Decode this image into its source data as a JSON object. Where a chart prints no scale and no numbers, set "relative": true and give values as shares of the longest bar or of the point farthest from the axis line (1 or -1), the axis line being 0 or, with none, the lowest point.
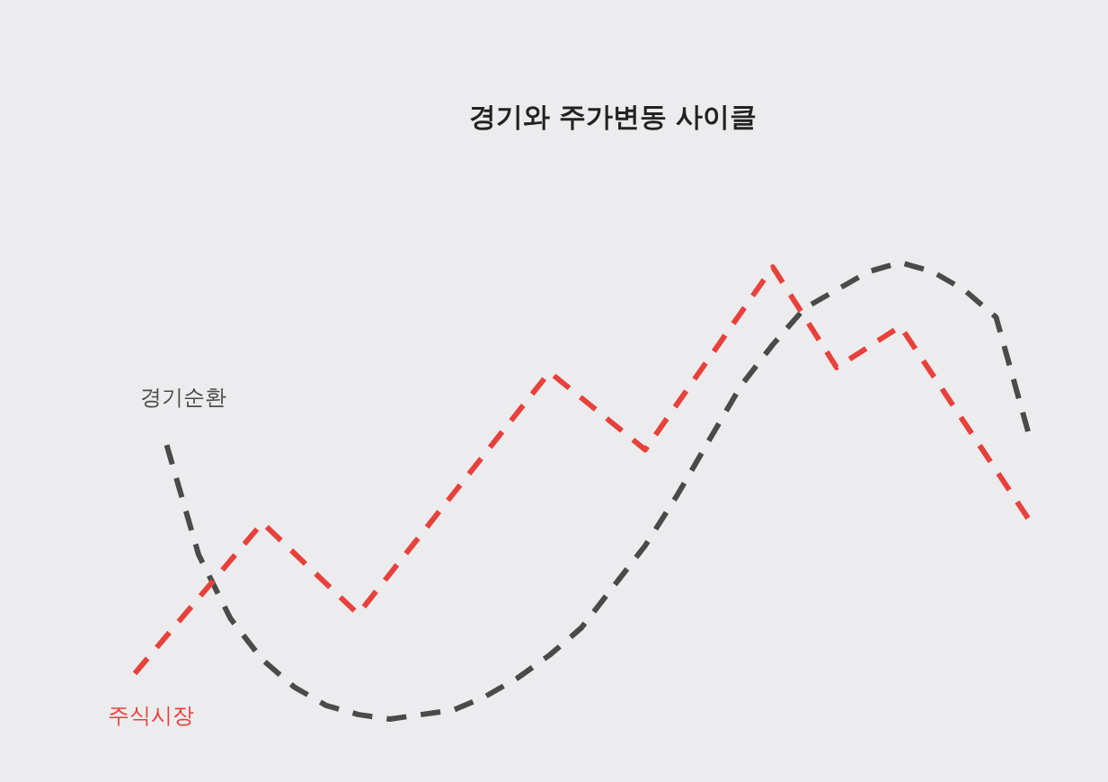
{
  "chart_data": {
    "type": "line",
    "title": "경기와 주가변동 사이클",
    "relative": true,
    "line_style": "dashed",
    "categories": [
      null,
      null,
      null,
      null,
      null,
      null,
      null,
      null,
      null,
      null,
      null,
      null,
      null,
      null,
      null,
      null,
      null,
      null,
      null,
      null,
      null,
      null,
      null,
      null,
      null,
      null,
      null,
      null,
      null
    ],
    "series": [
      {
        "name": "경기순환",
        "color": "#4a4a4a",
        "values": [
          null,
          0.6,
          0.36,
          0.22,
          0.13,
          0.07,
          0.03,
          0.01,
          0,
          0.01,
          0.02,
          0.05,
          0.09,
          0.14,
          0.2,
          0.29,
          0.38,
          0.49,
          0.61,
          0.73,
          0.82,
          0.9,
          0.94,
          0.98,
          1,
          0.98,
          0.94,
          0.88,
          0.63
        ]
      },
      {
        "name": "주식시장",
        "color": "#e8413c",
        "values": [
          0.1,
          null,
          null,
          null,
          0.43,
          null,
          null,
          0.23,
          null,
          null,
          null,
          null,
          null,
          0.76,
          null,
          null,
          0.59,
          null,
          null,
          null,
          0.99,
          null,
          0.77,
          null,
          0.86,
          null,
          null,
          null,
          0.44
        ]
      }
    ]
  }
}
